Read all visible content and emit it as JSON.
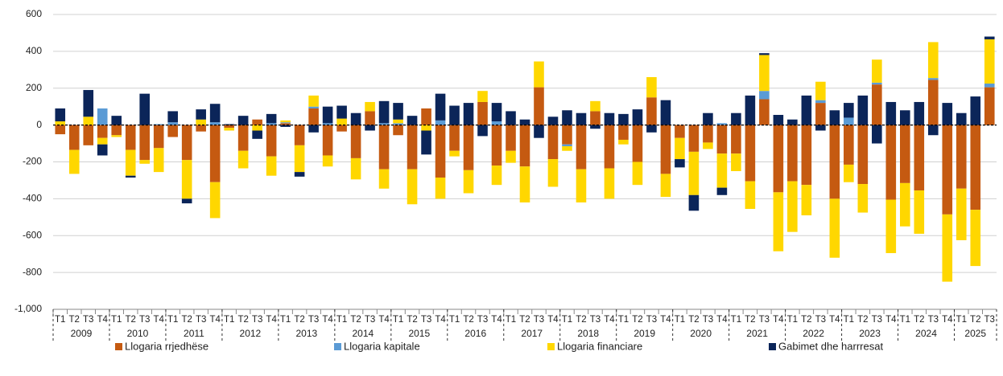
{
  "chart_data": {
    "type": "stacked_bar",
    "categories": [
      "T1",
      "T2",
      "T3",
      "T4",
      "T1",
      "T2",
      "T3",
      "T4",
      "T1",
      "T2",
      "T3",
      "T4",
      "T1",
      "T2",
      "T3",
      "T4",
      "T1",
      "T2",
      "T3",
      "T4",
      "T1",
      "T2",
      "T3",
      "T4",
      "T1",
      "T2",
      "T3",
      "T4",
      "T1",
      "T2",
      "T3",
      "T4",
      "T1",
      "T2",
      "T3",
      "T4",
      "T1",
      "T2",
      "T3",
      "T4",
      "T1",
      "T2",
      "T3",
      "T4",
      "T1",
      "T2",
      "T3",
      "T4",
      "T1",
      "T2",
      "T3",
      "T4",
      "T1",
      "T2",
      "T3",
      "T4",
      "T1",
      "T2",
      "T3",
      "T4",
      "T1",
      "T2",
      "T3",
      "T4",
      "T1",
      "T2",
      "T3"
    ],
    "years": [
      "2009",
      "2010",
      "2011",
      "2012",
      "2013",
      "2014",
      "2015",
      "2016",
      "2017",
      "2018",
      "2019",
      "2020",
      "2021",
      "2022",
      "2023",
      "2024",
      "2025"
    ],
    "series": [
      {
        "name": "Llogaria rrjedhëse",
        "color": "#c55a11",
        "values": [
          -50,
          -135,
          -110,
          -70,
          -55,
          -135,
          -190,
          -125,
          -65,
          -190,
          -35,
          -310,
          -15,
          -140,
          30,
          -170,
          10,
          -110,
          90,
          -165,
          -35,
          -180,
          75,
          -240,
          -55,
          -240,
          90,
          -285,
          -140,
          -245,
          125,
          -220,
          -140,
          -225,
          205,
          -185,
          -105,
          -240,
          75,
          -235,
          -80,
          -200,
          150,
          -265,
          -70,
          -145,
          -95,
          -155,
          -155,
          -305,
          140,
          -365,
          -305,
          -325,
          120,
          -400,
          -215,
          -320,
          220,
          -405,
          -315,
          -355,
          245,
          -485,
          -345,
          -460,
          205
        ]
      },
      {
        "name": "Llogaria kapitale",
        "color": "#5b9bd5",
        "values": [
          0,
          0,
          0,
          90,
          0,
          0,
          0,
          5,
          15,
          0,
          0,
          15,
          0,
          0,
          0,
          10,
          5,
          0,
          10,
          10,
          0,
          0,
          0,
          10,
          10,
          0,
          0,
          25,
          0,
          0,
          0,
          20,
          0,
          0,
          0,
          0,
          -10,
          0,
          0,
          0,
          0,
          0,
          0,
          0,
          0,
          0,
          0,
          10,
          0,
          0,
          45,
          0,
          0,
          0,
          15,
          0,
          40,
          0,
          10,
          0,
          0,
          0,
          10,
          0,
          0,
          0,
          20
        ]
      },
      {
        "name": "Llogaria financiare",
        "color": "#ffd700",
        "values": [
          20,
          -130,
          45,
          -35,
          -10,
          -140,
          -20,
          -130,
          0,
          -210,
          30,
          -195,
          -15,
          -95,
          -30,
          -105,
          10,
          -145,
          60,
          -60,
          35,
          -115,
          50,
          -105,
          20,
          -190,
          -30,
          -115,
          -30,
          -125,
          60,
          -105,
          -65,
          -195,
          140,
          -150,
          -25,
          -180,
          55,
          -165,
          -25,
          -125,
          110,
          -125,
          -115,
          -235,
          -35,
          -185,
          -95,
          -150,
          195,
          -320,
          -275,
          -165,
          100,
          -320,
          -95,
          -155,
          125,
          -290,
          -235,
          -235,
          195,
          -365,
          -280,
          -305,
          240
        ]
      },
      {
        "name": "Gabimet dhe harrresat",
        "color": "#0b2559",
        "values": [
          70,
          0,
          145,
          -60,
          50,
          -10,
          170,
          0,
          60,
          -25,
          55,
          100,
          5,
          50,
          -45,
          50,
          -10,
          -25,
          -40,
          90,
          70,
          65,
          -30,
          120,
          90,
          50,
          -130,
          145,
          105,
          120,
          -60,
          100,
          75,
          30,
          -70,
          45,
          80,
          65,
          -20,
          65,
          60,
          85,
          -40,
          135,
          -45,
          -85,
          65,
          -40,
          65,
          160,
          10,
          55,
          30,
          160,
          -30,
          80,
          80,
          160,
          -100,
          125,
          80,
          125,
          -55,
          120,
          65,
          155,
          15
        ]
      }
    ],
    "ylim": [
      -1000,
      600
    ],
    "yticks": [
      {
        "value": -1000,
        "label": "-1,000"
      },
      -800,
      -600,
      -400,
      -200,
      0,
      200,
      400,
      600
    ],
    "grid": true,
    "legend": "bottom"
  }
}
